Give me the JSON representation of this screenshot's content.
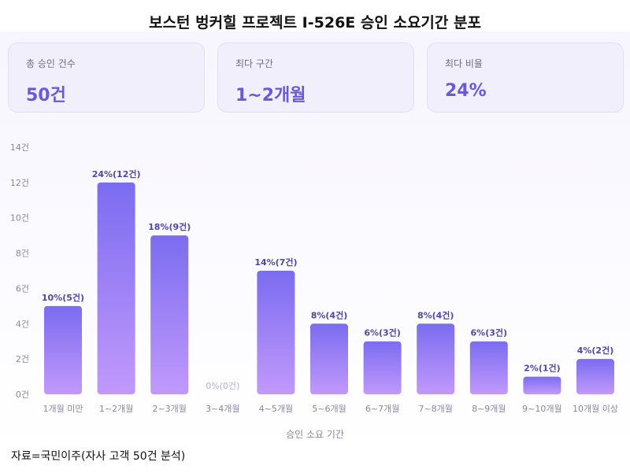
{
  "title": "보스턴 벙커힐 프로젝트 I-526E 승인 소요기간 분포",
  "cards": [
    {
      "label": "총 승인 건수",
      "value": "50건"
    },
    {
      "label": "최다 구간",
      "value": "1~2개월"
    },
    {
      "label": "최다 비율",
      "value": "24%"
    }
  ],
  "source": "자료=국민이주(자사 고객 50건 분석)",
  "colors": {
    "bar_top": "#7b6cf0",
    "bar_bottom": "#c199fb",
    "accent": "#6a5ad9",
    "label": "#4e47a8"
  },
  "chart_data": {
    "type": "bar",
    "categories": [
      "1개월 미만",
      "1~2개월",
      "2~3개월",
      "3~4개월",
      "4~5개월",
      "5~6개월",
      "6~7개월",
      "7~8개월",
      "8~9개월",
      "9~10개월",
      "10개월 이상"
    ],
    "values": [
      5,
      12,
      9,
      0,
      7,
      4,
      3,
      4,
      3,
      1,
      2
    ],
    "data_labels": [
      "10%(5건)",
      "24%(12건)",
      "18%(9건)",
      "0%(0건)",
      "14%(7건)",
      "8%(4건)",
      "6%(3건)",
      "8%(4건)",
      "6%(3건)",
      "2%(1건)",
      "4%(2건)"
    ],
    "yticks": [
      "0건",
      "2건",
      "4건",
      "6건",
      "8건",
      "10건",
      "12건",
      "14건"
    ],
    "ylim": [
      0,
      14
    ],
    "xlabel": "승인 소요 기간",
    "ylabel": "",
    "grid": false
  }
}
